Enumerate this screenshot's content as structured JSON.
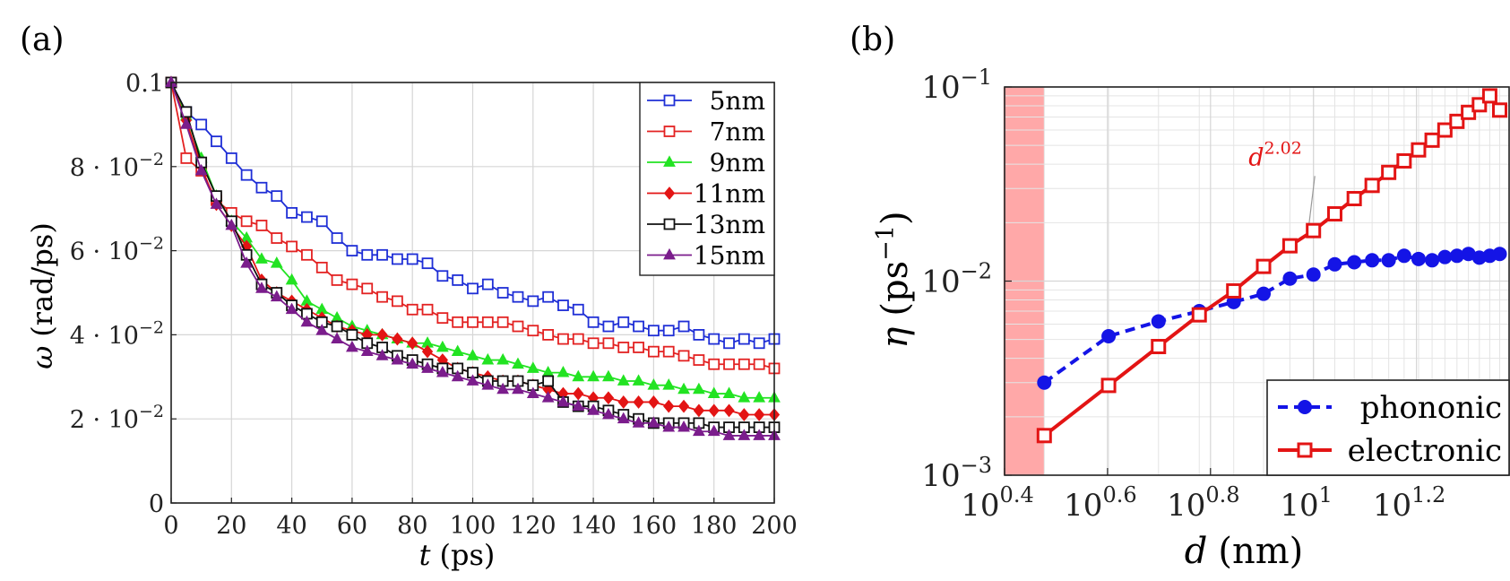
{
  "panel_labels": {
    "a": "(a)",
    "b": "(b)"
  },
  "chart_data": [
    {
      "type": "line",
      "panel": "(a)",
      "xlabel_var": "t",
      "xlabel_unit": "(ps)",
      "ylabel_var": "ω",
      "ylabel_unit": "(rad/ps)",
      "xlim": [
        0,
        200
      ],
      "ylim": [
        0,
        0.1
      ],
      "x_ticks": [
        "0",
        "20",
        "40",
        "60",
        "80",
        "100",
        "120",
        "140",
        "160",
        "180",
        "200"
      ],
      "y_ticks": [
        {
          "value": 0,
          "label": "0"
        },
        {
          "value": 0.02,
          "label": "2 · 10",
          "exp": "−2"
        },
        {
          "value": 0.04,
          "label": "4 · 10",
          "exp": "−2"
        },
        {
          "value": 0.06,
          "label": "6 · 10",
          "exp": "−2"
        },
        {
          "value": 0.08,
          "label": "8 · 10",
          "exp": "−2"
        },
        {
          "value": 0.1,
          "label": "0.1"
        }
      ],
      "grid": true,
      "legend_position": "top-right",
      "series": [
        {
          "name": "5nm",
          "color": "#1f2fd6",
          "marker": "square-open",
          "x": [
            0,
            5,
            10,
            15,
            20,
            25,
            30,
            35,
            40,
            45,
            50,
            55,
            60,
            65,
            70,
            75,
            80,
            85,
            90,
            95,
            100,
            105,
            110,
            115,
            120,
            125,
            130,
            135,
            140,
            145,
            150,
            155,
            160,
            165,
            170,
            175,
            180,
            185,
            190,
            195,
            200
          ],
          "y": [
            0.1,
            0.093,
            0.09,
            0.086,
            0.082,
            0.078,
            0.075,
            0.073,
            0.069,
            0.068,
            0.067,
            0.063,
            0.06,
            0.059,
            0.059,
            0.058,
            0.058,
            0.057,
            0.054,
            0.053,
            0.051,
            0.052,
            0.05,
            0.049,
            0.048,
            0.049,
            0.047,
            0.046,
            0.043,
            0.042,
            0.043,
            0.042,
            0.041,
            0.041,
            0.042,
            0.04,
            0.039,
            0.038,
            0.039,
            0.038,
            0.039
          ]
        },
        {
          "name": "7nm",
          "color": "#e32222",
          "marker": "square-open",
          "x": [
            0,
            5,
            10,
            15,
            20,
            25,
            30,
            35,
            40,
            45,
            50,
            55,
            60,
            65,
            70,
            75,
            80,
            85,
            90,
            95,
            100,
            105,
            110,
            115,
            120,
            125,
            130,
            135,
            140,
            145,
            150,
            155,
            160,
            165,
            170,
            175,
            180,
            185,
            190,
            195,
            200
          ],
          "y": [
            0.1,
            0.082,
            0.079,
            0.072,
            0.069,
            0.067,
            0.066,
            0.063,
            0.061,
            0.059,
            0.056,
            0.053,
            0.052,
            0.051,
            0.049,
            0.048,
            0.046,
            0.046,
            0.044,
            0.043,
            0.043,
            0.043,
            0.043,
            0.042,
            0.041,
            0.04,
            0.039,
            0.039,
            0.038,
            0.038,
            0.037,
            0.037,
            0.036,
            0.036,
            0.035,
            0.034,
            0.033,
            0.033,
            0.033,
            0.033,
            0.032
          ]
        },
        {
          "name": "9nm",
          "color": "#22e322",
          "marker": "triangle-filled",
          "x": [
            0,
            5,
            10,
            15,
            20,
            25,
            30,
            35,
            40,
            45,
            50,
            55,
            60,
            65,
            70,
            75,
            80,
            85,
            90,
            95,
            100,
            105,
            110,
            115,
            120,
            125,
            130,
            135,
            140,
            145,
            150,
            155,
            160,
            165,
            170,
            175,
            180,
            185,
            190,
            195,
            200
          ],
          "y": [
            0.1,
            0.092,
            0.082,
            0.073,
            0.067,
            0.063,
            0.058,
            0.057,
            0.053,
            0.048,
            0.046,
            0.044,
            0.042,
            0.041,
            0.04,
            0.039,
            0.038,
            0.038,
            0.037,
            0.036,
            0.035,
            0.034,
            0.034,
            0.033,
            0.032,
            0.031,
            0.031,
            0.03,
            0.03,
            0.03,
            0.029,
            0.029,
            0.028,
            0.028,
            0.027,
            0.027,
            0.026,
            0.026,
            0.025,
            0.025,
            0.025
          ]
        },
        {
          "name": "11nm",
          "color": "#e31414",
          "marker": "diamond-filled",
          "x": [
            0,
            5,
            10,
            15,
            20,
            25,
            30,
            35,
            40,
            45,
            50,
            55,
            60,
            65,
            70,
            75,
            80,
            85,
            90,
            95,
            100,
            105,
            110,
            115,
            120,
            125,
            130,
            135,
            140,
            145,
            150,
            155,
            160,
            165,
            170,
            175,
            180,
            185,
            190,
            195,
            200
          ],
          "y": [
            0.1,
            0.091,
            0.08,
            0.071,
            0.066,
            0.061,
            0.053,
            0.05,
            0.048,
            0.046,
            0.044,
            0.042,
            0.041,
            0.04,
            0.04,
            0.039,
            0.038,
            0.036,
            0.034,
            0.032,
            0.031,
            0.03,
            0.029,
            0.029,
            0.028,
            0.027,
            0.026,
            0.026,
            0.025,
            0.025,
            0.024,
            0.024,
            0.024,
            0.023,
            0.023,
            0.022,
            0.022,
            0.022,
            0.021,
            0.021,
            0.021
          ]
        },
        {
          "name": "13nm",
          "color": "#111111",
          "marker": "square-open",
          "x": [
            0,
            5,
            10,
            15,
            20,
            25,
            30,
            35,
            40,
            45,
            50,
            55,
            60,
            65,
            70,
            75,
            80,
            85,
            90,
            95,
            100,
            105,
            110,
            115,
            120,
            125,
            130,
            135,
            140,
            145,
            150,
            155,
            160,
            165,
            170,
            175,
            180,
            185,
            190,
            195,
            200
          ],
          "y": [
            0.1,
            0.093,
            0.081,
            0.073,
            0.067,
            0.059,
            0.052,
            0.05,
            0.047,
            0.045,
            0.043,
            0.042,
            0.04,
            0.038,
            0.037,
            0.035,
            0.034,
            0.033,
            0.032,
            0.032,
            0.031,
            0.029,
            0.029,
            0.029,
            0.028,
            0.029,
            0.024,
            0.023,
            0.023,
            0.022,
            0.021,
            0.02,
            0.019,
            0.019,
            0.019,
            0.019,
            0.018,
            0.018,
            0.018,
            0.018,
            0.018
          ]
        },
        {
          "name": "15nm",
          "color": "#7b1d8c",
          "marker": "triangle-filled",
          "x": [
            0,
            5,
            10,
            15,
            20,
            25,
            30,
            35,
            40,
            45,
            50,
            55,
            60,
            65,
            70,
            75,
            80,
            85,
            90,
            95,
            100,
            105,
            110,
            115,
            120,
            125,
            130,
            135,
            140,
            145,
            150,
            155,
            160,
            165,
            170,
            175,
            180,
            185,
            190,
            195,
            200
          ],
          "y": [
            0.1,
            0.09,
            0.079,
            0.071,
            0.066,
            0.057,
            0.051,
            0.049,
            0.046,
            0.043,
            0.041,
            0.039,
            0.037,
            0.036,
            0.035,
            0.034,
            0.033,
            0.032,
            0.031,
            0.03,
            0.029,
            0.028,
            0.027,
            0.027,
            0.026,
            0.025,
            0.024,
            0.023,
            0.022,
            0.021,
            0.02,
            0.019,
            0.019,
            0.018,
            0.018,
            0.017,
            0.017,
            0.016,
            0.016,
            0.016,
            0.016
          ]
        }
      ]
    },
    {
      "type": "line",
      "panel": "(b)",
      "xscale": "log",
      "yscale": "log",
      "xlabel_var": "d",
      "xlabel_unit": "(nm)",
      "ylabel_var": "η",
      "ylabel_unit_base": "(ps",
      "ylabel_unit_exp": "−1",
      "ylabel_unit_close": ")",
      "xlim_log10": [
        0.4,
        1.38
      ],
      "ylim_log10": [
        -3,
        -1
      ],
      "x_ticks": [
        {
          "log10": 0.4,
          "base": "10",
          "exp": "0.4"
        },
        {
          "log10": 0.6,
          "base": "10",
          "exp": "0.6"
        },
        {
          "log10": 0.8,
          "base": "10",
          "exp": "0.8"
        },
        {
          "log10": 1.0,
          "base": "10",
          "exp": "1"
        },
        {
          "log10": 1.2,
          "base": "10",
          "exp": "1.2"
        }
      ],
      "y_ticks": [
        {
          "log10": -3,
          "base": "10",
          "exp": "−3"
        },
        {
          "log10": -2,
          "base": "10",
          "exp": "−2"
        },
        {
          "log10": -1,
          "base": "10",
          "exp": "−1"
        }
      ],
      "grid": true,
      "legend_position": "bottom-right",
      "shaded_region_d": [
        2.5,
        3.0
      ],
      "shaded_color": "#ff9999",
      "annotation": {
        "base": "d",
        "exp": "2.02",
        "color": "#e31414"
      },
      "series": [
        {
          "name": "phononic",
          "color": "#1414e6",
          "style": "dashed",
          "marker": "circle-filled",
          "x": [
            3,
            4,
            5,
            6,
            7,
            8,
            9,
            10,
            11,
            12,
            13,
            14,
            15,
            16,
            17,
            18,
            19,
            20,
            21,
            22,
            23
          ],
          "y": [
            0.003,
            0.0052,
            0.0062,
            0.007,
            0.0078,
            0.0086,
            0.0103,
            0.0108,
            0.0122,
            0.0125,
            0.0128,
            0.0128,
            0.0135,
            0.013,
            0.0128,
            0.0133,
            0.0135,
            0.0138,
            0.0132,
            0.0135,
            0.0138
          ]
        },
        {
          "name": "electronic",
          "color": "#e31414",
          "style": "solid",
          "marker": "square-open",
          "x": [
            3,
            4,
            5,
            6,
            7,
            8,
            9,
            10,
            11,
            12,
            13,
            14,
            15,
            16,
            17,
            18,
            19,
            20,
            21,
            22,
            23
          ],
          "y": [
            0.0016,
            0.0029,
            0.0046,
            0.0067,
            0.0089,
            0.0119,
            0.0152,
            0.0182,
            0.0222,
            0.0266,
            0.0311,
            0.0363,
            0.0416,
            0.0474,
            0.0532,
            0.06,
            0.0665,
            0.074,
            0.081,
            0.09,
            0.076
          ]
        }
      ]
    }
  ]
}
